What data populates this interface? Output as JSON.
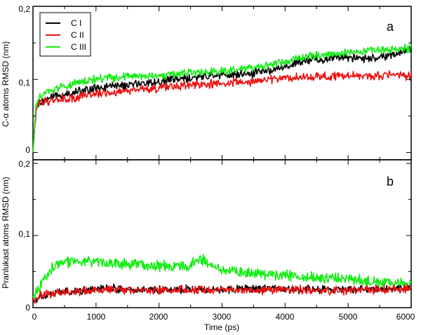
{
  "colors": {
    "c1": "#000000",
    "c2": "#ee1111",
    "c3": "#11ee11"
  },
  "chart_data": [
    {
      "type": "line",
      "panel_label": "a",
      "ylabel": "C-α atoms RMSD (nm)",
      "xlabel": "",
      "xlim": [
        0,
        6000
      ],
      "ylim": [
        -0.01,
        0.2
      ],
      "yticks": [
        0,
        0.1,
        0.2
      ],
      "ytick_labels": [
        "0",
        "0,1",
        "0,2"
      ],
      "xticks": [
        0,
        1000,
        2000,
        3000,
        4000,
        5000,
        6000
      ],
      "xtick_labels": [],
      "legend": {
        "placement": "top-left",
        "entries": [
          "C I",
          "C II",
          "C III"
        ]
      },
      "grid": false,
      "series": [
        {
          "name": "C I",
          "color": "#000000",
          "x": [
            0,
            50,
            100,
            200,
            300,
            500,
            700,
            1000,
            1200,
            1500,
            1800,
            2000,
            2500,
            3000,
            3500,
            4000,
            4300,
            4600,
            5000,
            5300,
            5600,
            6000
          ],
          "y": [
            0.0,
            0.062,
            0.068,
            0.072,
            0.076,
            0.079,
            0.083,
            0.088,
            0.09,
            0.092,
            0.095,
            0.097,
            0.102,
            0.106,
            0.108,
            0.118,
            0.126,
            0.128,
            0.13,
            0.128,
            0.132,
            0.14
          ]
        },
        {
          "name": "C II",
          "color": "#ee1111",
          "x": [
            0,
            50,
            100,
            200,
            400,
            700,
            1000,
            1500,
            2000,
            2500,
            3000,
            3500,
            4000,
            4500,
            5000,
            5500,
            5800,
            6000
          ],
          "y": [
            0.0,
            0.06,
            0.07,
            0.07,
            0.072,
            0.075,
            0.08,
            0.085,
            0.088,
            0.093,
            0.095,
            0.097,
            0.102,
            0.104,
            0.105,
            0.105,
            0.108,
            0.103
          ]
        },
        {
          "name": "C III",
          "color": "#11ee11",
          "x": [
            0,
            50,
            100,
            200,
            400,
            700,
            1000,
            1500,
            2000,
            2500,
            3000,
            3500,
            4000,
            4500,
            5000,
            5500,
            6000
          ],
          "y": [
            0.0,
            0.065,
            0.075,
            0.082,
            0.088,
            0.095,
            0.1,
            0.104,
            0.105,
            0.109,
            0.112,
            0.115,
            0.125,
            0.133,
            0.137,
            0.14,
            0.143
          ]
        }
      ]
    },
    {
      "type": "line",
      "panel_label": "b",
      "ylabel": "Pranlukast atoms RMSD (nm)",
      "xlabel": "Time (ps)",
      "xlim": [
        0,
        6000
      ],
      "ylim": [
        0,
        0.205
      ],
      "yticks": [
        0,
        0.1,
        0.2
      ],
      "ytick_labels": [
        "0",
        "0,1",
        "0,2"
      ],
      "xticks": [
        0,
        1000,
        2000,
        3000,
        4000,
        5000,
        6000
      ],
      "xtick_labels": [
        "0",
        "1000",
        "2000",
        "3000",
        "4000",
        "5000",
        "6000"
      ],
      "grid": false,
      "series": [
        {
          "name": "C I",
          "color": "#000000",
          "x": [
            0,
            100,
            300,
            600,
            900,
            1000,
            1500,
            2000,
            2500,
            3000,
            3500,
            4000,
            4500,
            5000,
            5500,
            6000
          ],
          "y": [
            0.008,
            0.015,
            0.02,
            0.022,
            0.025,
            0.028,
            0.025,
            0.025,
            0.026,
            0.025,
            0.026,
            0.025,
            0.025,
            0.025,
            0.026,
            0.027
          ]
        },
        {
          "name": "C II",
          "color": "#ee1111",
          "x": [
            0,
            100,
            300,
            600,
            1000,
            1500,
            2000,
            2500,
            3000,
            3500,
            4000,
            4500,
            5000,
            5500,
            6000
          ],
          "y": [
            0.01,
            0.018,
            0.02,
            0.022,
            0.024,
            0.025,
            0.024,
            0.024,
            0.025,
            0.024,
            0.025,
            0.024,
            0.024,
            0.025,
            0.026
          ]
        },
        {
          "name": "C III",
          "color": "#11ee11",
          "x": [
            0,
            150,
            300,
            500,
            800,
            1000,
            1500,
            2000,
            2500,
            2600,
            3000,
            3500,
            4000,
            4500,
            5000,
            5500,
            6000
          ],
          "y": [
            0.015,
            0.035,
            0.055,
            0.063,
            0.065,
            0.062,
            0.06,
            0.058,
            0.057,
            0.07,
            0.052,
            0.048,
            0.045,
            0.042,
            0.04,
            0.035,
            0.032
          ]
        }
      ]
    }
  ]
}
